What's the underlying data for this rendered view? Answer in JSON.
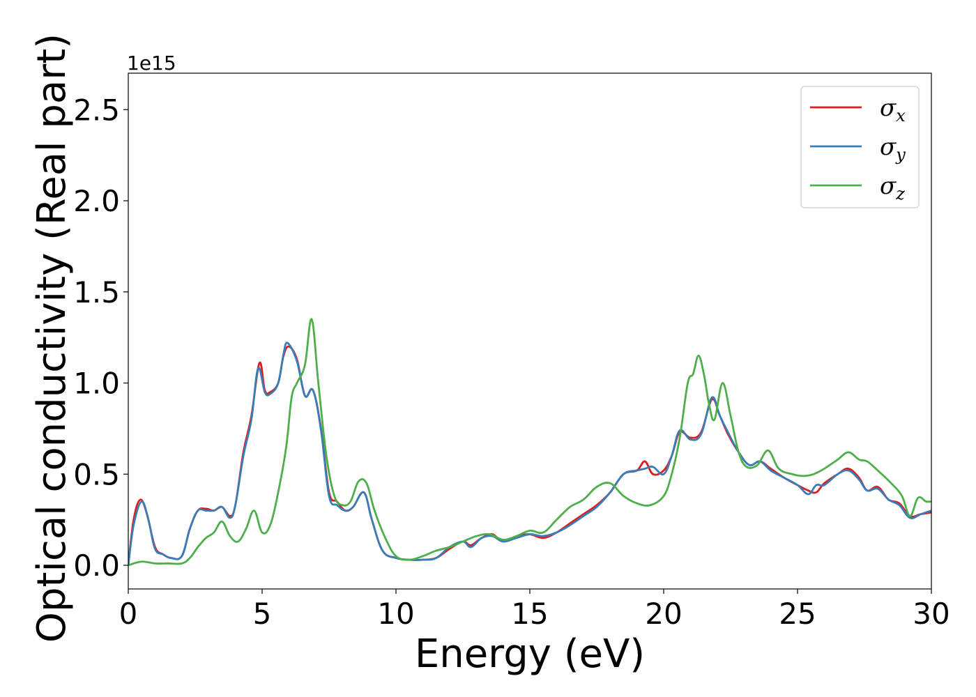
{
  "chart_data": {
    "type": "line",
    "title": "",
    "xlabel": "Energy (eV)",
    "ylabel": "Optical conductivity (Real part)",
    "y_offset_label": "1e15",
    "xlim": [
      0,
      30
    ],
    "ylim": [
      -0.13,
      2.7
    ],
    "xticks": [
      0,
      5,
      10,
      15,
      20,
      25,
      30
    ],
    "xtick_labels": [
      "0",
      "5",
      "10",
      "15",
      "20",
      "25",
      "30"
    ],
    "yticks": [
      0.0,
      0.5,
      1.0,
      1.5,
      2.0,
      2.5
    ],
    "ytick_labels": [
      "0.0",
      "0.5",
      "1.0",
      "1.5",
      "2.0",
      "2.5"
    ],
    "grid": false,
    "legend_position": "top-right",
    "series": [
      {
        "name": "σx",
        "symbol": "σ",
        "subscript": "x",
        "color": "#e41a1c",
        "x": [
          0,
          0.2,
          0.45,
          0.7,
          1.0,
          1.3,
          1.6,
          2.0,
          2.3,
          2.6,
          2.9,
          3.2,
          3.5,
          3.8,
          4.0,
          4.3,
          4.6,
          4.9,
          5.1,
          5.3,
          5.6,
          5.8,
          6.0,
          6.3,
          6.6,
          6.9,
          7.2,
          7.5,
          7.8,
          8.1,
          8.4,
          8.8,
          9.1,
          9.5,
          10.0,
          10.5,
          11.0,
          11.5,
          12.0,
          12.5,
          12.8,
          13.2,
          13.6,
          14.0,
          14.5,
          15.0,
          15.5,
          16.0,
          16.5,
          17.0,
          17.5,
          18.0,
          18.5,
          19.0,
          19.3,
          19.6,
          20.0,
          20.3,
          20.6,
          21.0,
          21.4,
          21.8,
          22.1,
          22.4,
          22.8,
          23.2,
          23.6,
          24.0,
          24.5,
          25.0,
          25.4,
          25.7,
          26.0,
          26.5,
          26.9,
          27.3,
          27.6,
          28.0,
          28.4,
          28.8,
          29.2,
          29.6,
          30.0
        ],
        "y": [
          0.0,
          0.25,
          0.36,
          0.28,
          0.1,
          0.06,
          0.04,
          0.05,
          0.2,
          0.3,
          0.31,
          0.3,
          0.32,
          0.27,
          0.33,
          0.62,
          0.82,
          1.11,
          0.96,
          0.95,
          1.0,
          1.15,
          1.2,
          1.13,
          0.93,
          0.96,
          0.75,
          0.4,
          0.35,
          0.3,
          0.32,
          0.4,
          0.25,
          0.08,
          0.04,
          0.03,
          0.03,
          0.04,
          0.09,
          0.13,
          0.11,
          0.15,
          0.17,
          0.13,
          0.16,
          0.17,
          0.15,
          0.18,
          0.23,
          0.28,
          0.33,
          0.4,
          0.5,
          0.52,
          0.57,
          0.5,
          0.52,
          0.6,
          0.73,
          0.7,
          0.73,
          0.91,
          0.82,
          0.72,
          0.62,
          0.55,
          0.57,
          0.53,
          0.48,
          0.44,
          0.41,
          0.4,
          0.45,
          0.5,
          0.53,
          0.48,
          0.41,
          0.43,
          0.36,
          0.34,
          0.27,
          0.28,
          0.29
        ]
      },
      {
        "name": "σy",
        "symbol": "σ",
        "subscript": "y",
        "color": "#377eb8",
        "x": [
          0,
          0.2,
          0.5,
          0.75,
          1.0,
          1.3,
          1.6,
          2.0,
          2.3,
          2.6,
          2.9,
          3.2,
          3.5,
          3.8,
          4.0,
          4.3,
          4.6,
          4.85,
          5.1,
          5.3,
          5.6,
          5.8,
          5.95,
          6.3,
          6.6,
          6.9,
          7.2,
          7.5,
          7.8,
          8.1,
          8.4,
          8.8,
          9.1,
          9.5,
          10.0,
          10.5,
          11.0,
          11.5,
          12.0,
          12.5,
          12.8,
          13.2,
          13.6,
          14.0,
          14.5,
          15.0,
          15.5,
          16.0,
          16.5,
          17.0,
          17.5,
          18.0,
          18.5,
          19.0,
          19.3,
          19.6,
          20.0,
          20.3,
          20.6,
          21.0,
          21.4,
          21.8,
          22.1,
          22.4,
          22.8,
          23.2,
          23.6,
          24.0,
          24.5,
          25.0,
          25.4,
          25.7,
          26.0,
          26.5,
          26.9,
          27.3,
          27.6,
          28.0,
          28.4,
          28.8,
          29.2,
          29.6,
          30.0
        ],
        "y": [
          0.0,
          0.22,
          0.35,
          0.25,
          0.09,
          0.06,
          0.04,
          0.05,
          0.2,
          0.3,
          0.3,
          0.3,
          0.32,
          0.26,
          0.33,
          0.6,
          0.8,
          1.08,
          0.95,
          0.94,
          1.0,
          1.16,
          1.22,
          1.12,
          0.93,
          0.96,
          0.74,
          0.38,
          0.33,
          0.3,
          0.32,
          0.4,
          0.25,
          0.08,
          0.04,
          0.03,
          0.03,
          0.04,
          0.1,
          0.13,
          0.1,
          0.15,
          0.16,
          0.13,
          0.15,
          0.17,
          0.16,
          0.18,
          0.22,
          0.27,
          0.32,
          0.4,
          0.5,
          0.52,
          0.53,
          0.54,
          0.5,
          0.6,
          0.74,
          0.69,
          0.72,
          0.92,
          0.82,
          0.73,
          0.62,
          0.55,
          0.57,
          0.52,
          0.48,
          0.44,
          0.39,
          0.44,
          0.44,
          0.5,
          0.52,
          0.47,
          0.41,
          0.42,
          0.36,
          0.33,
          0.26,
          0.28,
          0.3
        ]
      },
      {
        "name": "σz",
        "symbol": "σ",
        "subscript": "z",
        "color": "#4daf4a",
        "x": [
          0,
          0.5,
          1.0,
          1.5,
          2.0,
          2.3,
          2.6,
          2.9,
          3.2,
          3.5,
          3.8,
          4.1,
          4.4,
          4.7,
          5.0,
          5.3,
          5.6,
          5.9,
          6.1,
          6.3,
          6.6,
          6.85,
          7.1,
          7.4,
          7.7,
          8.0,
          8.3,
          8.6,
          8.9,
          9.2,
          9.6,
          10.0,
          10.5,
          11.0,
          11.5,
          12.0,
          12.5,
          13.0,
          13.5,
          14.0,
          14.5,
          15.0,
          15.5,
          16.0,
          16.5,
          17.0,
          17.5,
          18.0,
          18.5,
          19.0,
          19.5,
          20.0,
          20.3,
          20.6,
          20.9,
          21.1,
          21.3,
          21.5,
          21.7,
          21.9,
          22.2,
          22.5,
          22.8,
          23.1,
          23.5,
          23.9,
          24.3,
          24.8,
          25.2,
          25.6,
          26.0,
          26.5,
          26.9,
          27.3,
          27.6,
          28.0,
          28.5,
          28.9,
          29.2,
          29.5,
          29.8,
          30.0
        ],
        "y": [
          0.0,
          0.02,
          0.01,
          0.01,
          0.01,
          0.04,
          0.1,
          0.15,
          0.18,
          0.24,
          0.16,
          0.13,
          0.2,
          0.3,
          0.18,
          0.22,
          0.4,
          0.65,
          0.92,
          1.0,
          1.1,
          1.35,
          1.0,
          0.6,
          0.38,
          0.33,
          0.35,
          0.46,
          0.45,
          0.3,
          0.15,
          0.05,
          0.03,
          0.05,
          0.08,
          0.1,
          0.13,
          0.16,
          0.17,
          0.14,
          0.16,
          0.19,
          0.18,
          0.25,
          0.32,
          0.36,
          0.43,
          0.45,
          0.38,
          0.34,
          0.33,
          0.38,
          0.5,
          0.7,
          1.0,
          1.05,
          1.15,
          1.05,
          0.88,
          0.8,
          1.0,
          0.82,
          0.62,
          0.54,
          0.55,
          0.63,
          0.53,
          0.5,
          0.49,
          0.5,
          0.53,
          0.58,
          0.62,
          0.58,
          0.57,
          0.52,
          0.45,
          0.38,
          0.27,
          0.37,
          0.35,
          0.35
        ]
      }
    ]
  }
}
